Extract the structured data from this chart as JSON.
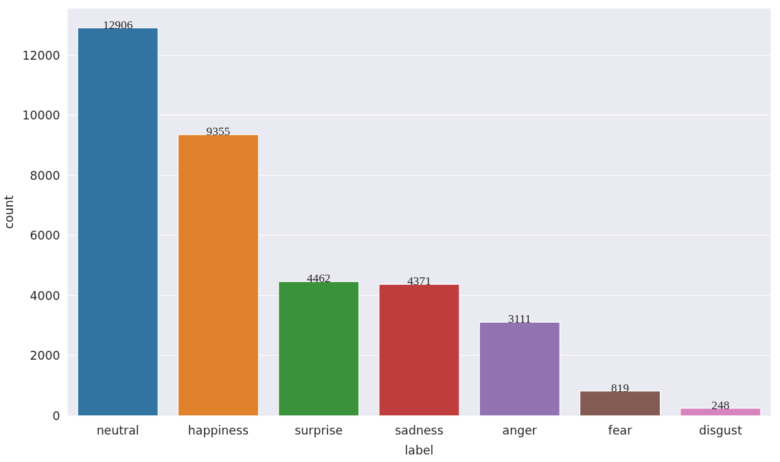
{
  "chart_data": {
    "type": "bar",
    "xlabel": "label",
    "ylabel": "count",
    "categories": [
      "neutral",
      "happiness",
      "surprise",
      "sadness",
      "anger",
      "fear",
      "disgust"
    ],
    "values": [
      12906,
      9355,
      4462,
      4371,
      3111,
      819,
      248
    ],
    "colors": [
      "#3274a1",
      "#e1812c",
      "#3a923a",
      "#c03d3e",
      "#9372b2",
      "#845b53",
      "#d684bd"
    ],
    "ylim": [
      0,
      13551
    ],
    "yticks": [
      0,
      2000,
      4000,
      6000,
      8000,
      10000,
      12000
    ],
    "grid": "y",
    "data_labels": true
  }
}
